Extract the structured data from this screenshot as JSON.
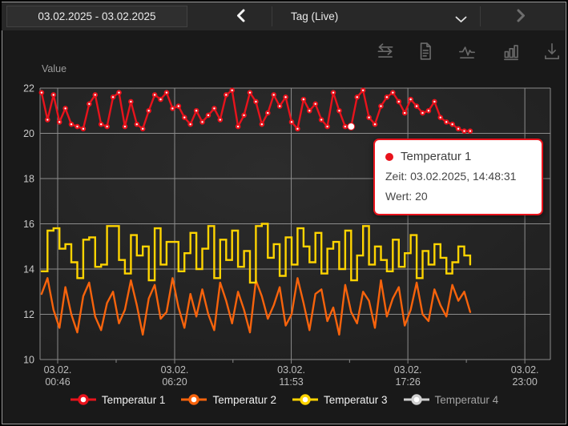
{
  "topbar": {
    "date_range": "03.02.2025 - 03.02.2025",
    "range_label": "Tag (Live)"
  },
  "toolbar": {
    "icons": [
      "swap-horizontal",
      "document",
      "waveform",
      "bar-chart",
      "download"
    ]
  },
  "chart_data": {
    "type": "line",
    "title": "",
    "ylabel": "Value",
    "xlabel": "",
    "ylim": [
      10,
      22
    ],
    "grid": true,
    "legend_position": "bottom",
    "yticks": [
      22,
      20,
      18,
      16,
      14,
      12,
      10
    ],
    "xticks": [
      {
        "date": "03.02.",
        "time": "00:46",
        "min": 46
      },
      {
        "date": "03.02.",
        "time": "06:20",
        "min": 380
      },
      {
        "date": "03.02.",
        "time": "11:53",
        "min": 713
      },
      {
        "date": "03.02.",
        "time": "17:26",
        "min": 1046
      },
      {
        "date": "03.02.",
        "time": "23:00",
        "min": 1380
      }
    ],
    "x_start_min": 0,
    "x_interval_min": 17,
    "series": [
      {
        "name": "Temperatur 1",
        "color": "#e8131c",
        "marker": true,
        "line": "linear",
        "values": [
          21.8,
          20.6,
          21.7,
          20.5,
          21.1,
          20.4,
          20.3,
          20.2,
          21.3,
          21.7,
          20.4,
          20.3,
          21.6,
          21.8,
          20.3,
          21.4,
          20.4,
          20.2,
          21.0,
          21.7,
          21.5,
          21.8,
          21.1,
          21.2,
          20.7,
          20.4,
          21.0,
          20.5,
          20.8,
          21.1,
          20.6,
          21.7,
          21.9,
          20.3,
          20.8,
          21.8,
          21.4,
          20.4,
          20.9,
          21.7,
          21.2,
          21.6,
          20.5,
          20.2,
          21.5,
          21.0,
          21.3,
          20.6,
          20.3,
          21.8,
          21.0,
          20.3,
          20.3,
          21.6,
          21.9,
          20.7,
          20.4,
          21.2,
          21.6,
          21.8,
          21.4,
          20.9,
          21.5,
          21.2,
          20.9,
          21.0,
          21.4,
          20.7,
          20.5,
          20.4,
          20.2,
          20.1,
          20.1
        ]
      },
      {
        "name": "Temperatur 2",
        "color": "#f7630c",
        "marker": false,
        "line": "linear",
        "values": [
          12.9,
          13.6,
          12.2,
          11.4,
          13.2,
          12.0,
          11.2,
          12.8,
          13.4,
          11.9,
          11.3,
          12.5,
          13.0,
          11.6,
          12.2,
          13.5,
          12.4,
          11.1,
          12.7,
          13.3,
          11.8,
          12.1,
          13.6,
          12.3,
          11.4,
          12.9,
          11.9,
          13.1,
          12.0,
          11.3,
          13.4,
          12.6,
          11.6,
          13.0,
          12.2,
          11.2,
          13.5,
          12.8,
          11.8,
          12.4,
          13.2,
          11.5,
          12.0,
          13.6,
          12.5,
          11.3,
          12.9,
          13.1,
          11.7,
          12.3,
          11.1,
          13.3,
          12.1,
          11.6,
          13.0,
          12.6,
          11.4,
          13.5,
          11.9,
          12.7,
          13.2,
          11.5,
          12.2,
          13.4,
          12.0,
          11.7,
          13.1,
          12.4,
          11.9,
          13.3,
          12.6,
          13.0,
          12.1
        ]
      },
      {
        "name": "Temperatur 3",
        "color": "#ffd400",
        "marker": false,
        "line": "step",
        "values": [
          13.9,
          15.7,
          15.8,
          14.9,
          15.1,
          14.3,
          13.6,
          15.3,
          15.4,
          14.1,
          14.2,
          15.9,
          15.9,
          14.4,
          13.8,
          15.5,
          14.6,
          15.0,
          13.5,
          15.8,
          14.2,
          15.2,
          15.2,
          13.9,
          14.7,
          15.6,
          14.0,
          14.9,
          15.9,
          13.6,
          15.3,
          14.4,
          15.7,
          14.1,
          14.8,
          13.4,
          15.9,
          16.0,
          14.5,
          15.1,
          13.7,
          15.4,
          14.2,
          15.8,
          15.0,
          14.3,
          15.6,
          13.8,
          14.9,
          15.2,
          14.0,
          15.7,
          13.5,
          14.6,
          15.9,
          14.2,
          15.0,
          14.4,
          13.9,
          15.3,
          14.1,
          14.7,
          15.5,
          13.6,
          14.8,
          14.2,
          15.1,
          14.5,
          13.8,
          14.3,
          15.0,
          14.6,
          14.2
        ]
      },
      {
        "name": "Temperatur 4",
        "color": "#cfcfcf",
        "marker": false,
        "line": "linear",
        "values": []
      }
    ],
    "hover": {
      "series": "Temperatur 1",
      "index": 52
    }
  },
  "tooltip": {
    "series": "Temperatur 1",
    "zeit_label": "Zeit:",
    "zeit": "03.02.2025, 14:48:31",
    "wert_label": "Wert:",
    "wert": "20"
  },
  "legend": {
    "items": [
      {
        "label": "Temperatur 1",
        "color": "#e8131c",
        "muted": false
      },
      {
        "label": "Temperatur 2",
        "color": "#f7630c",
        "muted": false
      },
      {
        "label": "Temperatur 3",
        "color": "#ffd400",
        "muted": false
      },
      {
        "label": "Temperatur 4",
        "color": "#cfcfcf",
        "muted": true
      }
    ]
  },
  "colors": {
    "grid": "#a6a6a6",
    "axis_label": "#c9c9c9",
    "tick_label": "#bcbcbc",
    "tooltip_border": "#e8131c"
  }
}
